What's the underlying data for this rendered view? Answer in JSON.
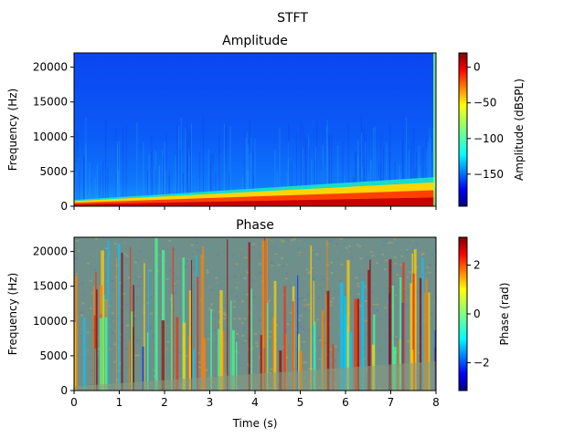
{
  "figure": {
    "suptitle": "STFT"
  },
  "colors": {
    "jet": [
      "#00007f",
      "#0000ff",
      "#007fff",
      "#00ffff",
      "#7fff7f",
      "#ffff00",
      "#ff7f00",
      "#ff0000",
      "#7f0000"
    ],
    "frame": "#000000",
    "background": "#ffffff"
  },
  "chart_data": [
    {
      "type": "heatmap",
      "title": "Amplitude",
      "xlabel": "",
      "ylabel": "Frequency (Hz)",
      "x_unit": "s",
      "xlim": [
        0,
        8
      ],
      "ylim": [
        0,
        22050
      ],
      "xticks": [
        0,
        1,
        2,
        3,
        4,
        5,
        6,
        7,
        8
      ],
      "xtick_labels_visible": false,
      "yticks": [
        0,
        5000,
        10000,
        15000,
        20000
      ],
      "ytick_labels": [
        "0",
        "5000",
        "10000",
        "15000",
        "20000"
      ],
      "colormap": "jet",
      "colorbar": {
        "label": "Amplitude (dBSPL)",
        "range": [
          -195,
          20
        ],
        "ticks": [
          0,
          -50,
          -100,
          -150
        ],
        "tick_labels": [
          "0",
          "−50",
          "−100",
          "−150"
        ]
      },
      "features": {
        "background_level": -145,
        "chirp_ridge": {
          "start_time": 0,
          "end_time": 8,
          "start_freq_hz": 0,
          "end_freq_hz": 4200
        },
        "ridge_level": 0
      }
    },
    {
      "type": "heatmap",
      "title": "Phase",
      "xlabel": "Time (s)",
      "ylabel": "Frequency (Hz)",
      "x_unit": "s",
      "xlim": [
        0,
        8
      ],
      "ylim": [
        0,
        22050
      ],
      "xticks": [
        0,
        1,
        2,
        3,
        4,
        5,
        6,
        7,
        8
      ],
      "xtick_labels": [
        "0",
        "1",
        "2",
        "3",
        "4",
        "5",
        "6",
        "7",
        "8"
      ],
      "yticks": [
        0,
        5000,
        10000,
        15000,
        20000
      ],
      "ytick_labels": [
        "0",
        "5000",
        "10000",
        "15000",
        "20000"
      ],
      "colormap": "jet",
      "colorbar": {
        "label": "Phase (rad)",
        "range": [
          -3.14159,
          3.14159
        ],
        "ticks": [
          2,
          0,
          -2
        ],
        "tick_labels": [
          "2",
          "0",
          "−2"
        ]
      },
      "features": {
        "background": "random phase noise",
        "chirp_ridge": {
          "start_time": 0,
          "end_time": 8,
          "start_freq_hz": 0,
          "end_freq_hz": 4200
        }
      }
    }
  ]
}
